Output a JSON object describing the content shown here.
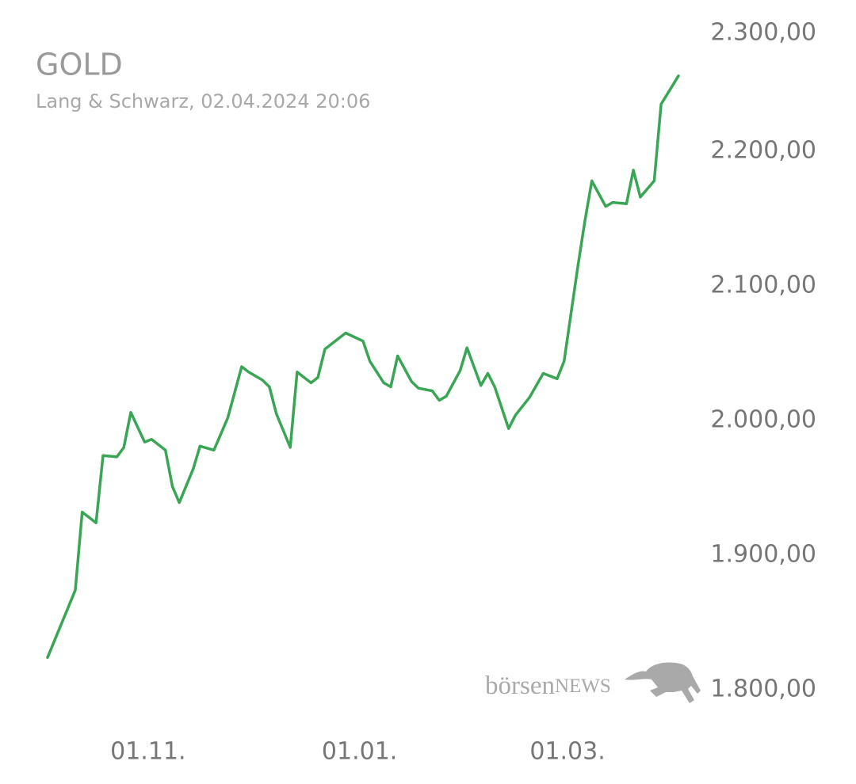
{
  "chart_data": {
    "type": "line",
    "title": "GOLD",
    "subtitle": "Lang & Schwarz, 02.04.2024 20:06",
    "logo": {
      "part1": "börsen",
      "part2": "NEWS"
    },
    "x": [
      "03.10.",
      "11.10.",
      "13.10.",
      "17.10.",
      "19.10.",
      "23.10.",
      "25.10.",
      "27.10.",
      "31.10.",
      "02.11.",
      "06.11.",
      "08.11.",
      "10.11.",
      "14.11.",
      "16.11.",
      "20.11.",
      "24.11.",
      "28.11.",
      "30.11.",
      "04.12.",
      "06.12.",
      "08.12.",
      "12.12.",
      "14.12.",
      "18.12.",
      "20.12.",
      "22.12.",
      "28.12.",
      "02.01.",
      "04.01.",
      "08.01.",
      "10.01.",
      "12.01.",
      "16.01.",
      "18.01.",
      "22.01.",
      "24.01.",
      "26.01.",
      "30.01.",
      "01.02.",
      "05.02.",
      "07.02.",
      "09.02.",
      "13.02.",
      "15.02.",
      "19.02.",
      "23.02.",
      "27.02.",
      "29.02.",
      "04.03.",
      "06.03.",
      "08.03.",
      "12.03.",
      "14.03.",
      "18.03.",
      "20.03.",
      "22.03.",
      "26.03.",
      "28.03.",
      "02.04."
    ],
    "series": [
      {
        "name": "GOLD",
        "color": "#3aa655",
        "values": [
          1824,
          1874,
          1932,
          1924,
          1974,
          1973,
          1980,
          2006,
          1984,
          1986,
          1978,
          1951,
          1939,
          1964,
          1981,
          1978,
          2002,
          2040,
          2036,
          2030,
          2025,
          2005,
          1980,
          2036,
          2028,
          2032,
          2053,
          2065,
          2059,
          2044,
          2028,
          2025,
          2048,
          2029,
          2024,
          2022,
          2015,
          2018,
          2037,
          2054,
          2026,
          2035,
          2025,
          1994,
          2004,
          2017,
          2035,
          2031,
          2044,
          2115,
          2148,
          2178,
          2159,
          2162,
          2161,
          2186,
          2166,
          2178,
          2235,
          2256
        ]
      }
    ],
    "xlim": [
      "03.10.",
      "02.04."
    ],
    "xticks": [
      "01.11.",
      "01.01.",
      "01.03."
    ],
    "ylim": [
      1790,
      2310
    ],
    "yticks": [
      {
        "value": 1800,
        "label": "1.800,00"
      },
      {
        "value": 1900,
        "label": "1.900,00"
      },
      {
        "value": 2000,
        "label": "2.000,00"
      },
      {
        "value": 2100,
        "label": "2.100,00"
      },
      {
        "value": 2200,
        "label": "2.200,00"
      },
      {
        "value": 2300,
        "label": "2.300,00"
      }
    ],
    "grid": false
  }
}
